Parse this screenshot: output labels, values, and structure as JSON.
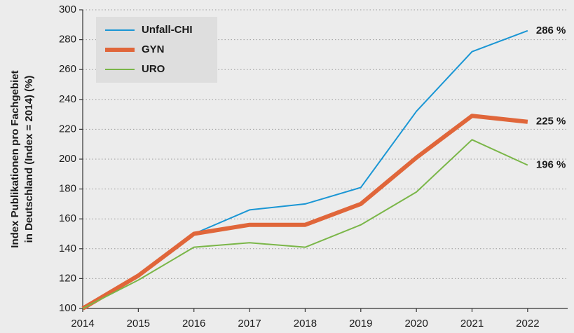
{
  "chart_data": {
    "type": "line",
    "ylabel": [
      "Index Publikationen pro Fachgebiet",
      "in Deutschland (Index = 2014) (%)"
    ],
    "x": [
      2014,
      2015,
      2016,
      2017,
      2018,
      2019,
      2020,
      2021,
      2022
    ],
    "series": [
      {
        "name": "Unfall-CHI",
        "color": "#1a96d4",
        "width": 2,
        "values": [
          100,
          121,
          150,
          166,
          170,
          181,
          232,
          272,
          286
        ],
        "value_labels": [
          null,
          null,
          null,
          null,
          null,
          null,
          null,
          null,
          "286 %"
        ]
      },
      {
        "name": "GYN",
        "color": "#e0663a",
        "width": 6,
        "values": [
          100,
          122,
          150,
          156,
          156,
          170,
          201,
          229,
          225
        ],
        "value_labels": [
          null,
          null,
          null,
          null,
          null,
          null,
          null,
          null,
          "225 %"
        ]
      },
      {
        "name": "URO",
        "color": "#7ab648",
        "width": 2,
        "values": [
          100,
          119,
          141,
          144,
          141,
          156,
          178,
          213,
          196
        ],
        "value_labels": [
          null,
          null,
          null,
          null,
          null,
          null,
          null,
          null,
          "196 %"
        ]
      }
    ],
    "xlim": [
      2014,
      2022.72
    ],
    "xticks": [
      2014,
      2015,
      2016,
      2017,
      2018,
      2019,
      2020,
      2021,
      2022
    ],
    "ylim": [
      100,
      300
    ],
    "yticks": [
      100,
      120,
      140,
      160,
      180,
      200,
      220,
      240,
      260,
      280,
      300
    ],
    "grid": true,
    "legend": "upper left"
  }
}
